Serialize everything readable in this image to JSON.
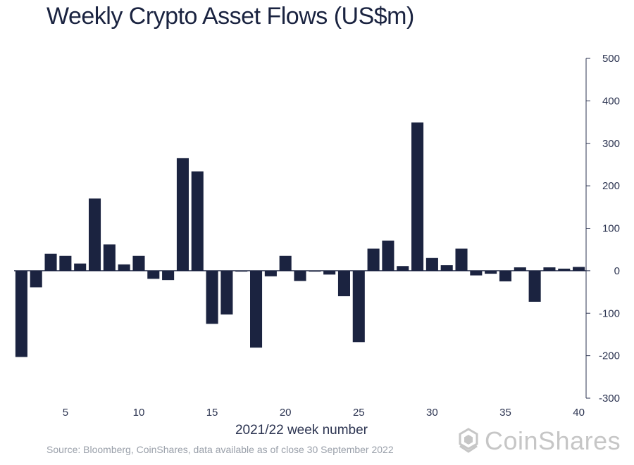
{
  "chart_data": {
    "type": "bar",
    "title": "Weekly Crypto Asset Flows (US$m)",
    "xlabel": "2021/22 week number",
    "ylabel": "",
    "ylim": [
      -300,
      500
    ],
    "yticks": [
      500,
      400,
      300,
      200,
      100,
      0,
      -100,
      -200,
      -300
    ],
    "xticks": [
      5,
      10,
      15,
      20,
      25,
      30,
      35,
      40
    ],
    "y_axis_position": "right",
    "grid": false,
    "bar_color": "#1b2340",
    "x": [
      2,
      3,
      4,
      5,
      6,
      7,
      8,
      9,
      10,
      11,
      12,
      13,
      14,
      15,
      16,
      17,
      18,
      19,
      20,
      21,
      22,
      23,
      24,
      25,
      26,
      27,
      28,
      29,
      30,
      31,
      32,
      33,
      34,
      35,
      36,
      37,
      38,
      39,
      40
    ],
    "values": [
      -203,
      -39,
      40,
      35,
      17,
      170,
      62,
      15,
      35,
      -19,
      -22,
      265,
      234,
      -125,
      -103,
      -2,
      -181,
      -13,
      35,
      -24,
      -2,
      -9,
      -60,
      -168,
      52,
      71,
      11,
      349,
      30,
      13,
      52,
      -11,
      -7,
      -25,
      8,
      -73,
      8,
      5,
      9
    ]
  },
  "source": "Source: Bloomberg, CoinShares, data available as of close 30 September 2022",
  "logo": {
    "text": "CoinShares",
    "color": "#c6c6c6"
  }
}
